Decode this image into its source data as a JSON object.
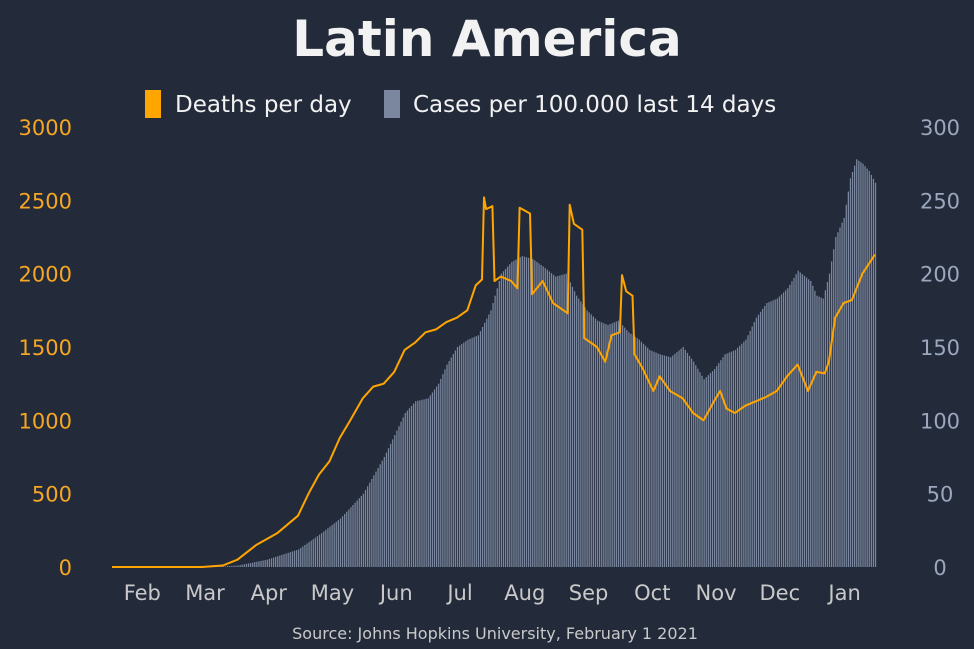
{
  "chart_data": {
    "type": "line+bar",
    "title": "Latin America",
    "source": "Source: Johns Hopkins University, February 1 2021",
    "legend": [
      {
        "label": "Deaths per day",
        "color": "#ffa500"
      },
      {
        "label": "Cases per 100.000 last 14 days",
        "color": "#7a879e"
      }
    ],
    "x_ticks": [
      "Feb",
      "Mar",
      "Apr",
      "May",
      "Jun",
      "Jul",
      "Aug",
      "Sep",
      "Oct",
      "Nov",
      "Dec",
      "Jan"
    ],
    "y_left": {
      "min": 0,
      "max": 3000,
      "ticks": [
        "0",
        "500",
        "1000",
        "1500",
        "2000",
        "2500",
        "3000"
      ]
    },
    "y_right": {
      "min": 0,
      "max": 300,
      "ticks": [
        "0",
        "50",
        "100",
        "150",
        "200",
        "250",
        "300"
      ]
    },
    "series": [
      {
        "name": "Deaths per day",
        "kind": "line",
        "axis": "left",
        "color": "#ffa500",
        "points": [
          [
            "2020-02-01",
            0
          ],
          [
            "2020-03-15",
            0
          ],
          [
            "2020-03-25",
            10
          ],
          [
            "2020-04-01",
            50
          ],
          [
            "2020-04-10",
            150
          ],
          [
            "2020-04-20",
            230
          ],
          [
            "2020-04-30",
            350
          ],
          [
            "2020-05-05",
            500
          ],
          [
            "2020-05-10",
            630
          ],
          [
            "2020-05-15",
            720
          ],
          [
            "2020-05-20",
            880
          ],
          [
            "2020-05-25",
            1000
          ],
          [
            "2020-05-31",
            1150
          ],
          [
            "2020-06-05",
            1230
          ],
          [
            "2020-06-10",
            1250
          ],
          [
            "2020-06-15",
            1330
          ],
          [
            "2020-06-20",
            1480
          ],
          [
            "2020-06-25",
            1530
          ],
          [
            "2020-06-30",
            1600
          ],
          [
            "2020-07-05",
            1620
          ],
          [
            "2020-07-10",
            1670
          ],
          [
            "2020-07-15",
            1700
          ],
          [
            "2020-07-20",
            1750
          ],
          [
            "2020-07-24",
            1920
          ],
          [
            "2020-07-27",
            1960
          ],
          [
            "2020-07-28",
            2520
          ],
          [
            "2020-07-29",
            2440
          ],
          [
            "2020-08-01",
            2460
          ],
          [
            "2020-08-02",
            1950
          ],
          [
            "2020-08-05",
            1980
          ],
          [
            "2020-08-10",
            1950
          ],
          [
            "2020-08-13",
            1900
          ],
          [
            "2020-08-14",
            2450
          ],
          [
            "2020-08-19",
            2410
          ],
          [
            "2020-08-20",
            1860
          ],
          [
            "2020-08-25",
            1950
          ],
          [
            "2020-08-30",
            1800
          ],
          [
            "2020-09-04",
            1750
          ],
          [
            "2020-09-06",
            1730
          ],
          [
            "2020-09-07",
            2470
          ],
          [
            "2020-09-09",
            2340
          ],
          [
            "2020-09-13",
            2300
          ],
          [
            "2020-09-14",
            1560
          ],
          [
            "2020-09-20",
            1500
          ],
          [
            "2020-09-24",
            1400
          ],
          [
            "2020-09-27",
            1580
          ],
          [
            "2020-10-01",
            1600
          ],
          [
            "2020-10-02",
            1990
          ],
          [
            "2020-10-04",
            1880
          ],
          [
            "2020-10-07",
            1850
          ],
          [
            "2020-10-08",
            1450
          ],
          [
            "2020-10-12",
            1350
          ],
          [
            "2020-10-17",
            1200
          ],
          [
            "2020-10-20",
            1300
          ],
          [
            "2020-10-25",
            1200
          ],
          [
            "2020-10-31",
            1150
          ],
          [
            "2020-11-05",
            1050
          ],
          [
            "2020-11-10",
            1000
          ],
          [
            "2020-11-15",
            1130
          ],
          [
            "2020-11-18",
            1200
          ],
          [
            "2020-11-21",
            1080
          ],
          [
            "2020-11-25",
            1050
          ],
          [
            "2020-11-30",
            1100
          ],
          [
            "2020-12-05",
            1130
          ],
          [
            "2020-12-10",
            1160
          ],
          [
            "2020-12-15",
            1200
          ],
          [
            "2020-12-20",
            1300
          ],
          [
            "2020-12-25",
            1380
          ],
          [
            "2020-12-30",
            1200
          ],
          [
            "2021-01-03",
            1330
          ],
          [
            "2021-01-07",
            1320
          ],
          [
            "2021-01-09",
            1400
          ],
          [
            "2021-01-12",
            1700
          ],
          [
            "2021-01-16",
            1800
          ],
          [
            "2021-01-20",
            1820
          ],
          [
            "2021-01-25",
            2000
          ],
          [
            "2021-01-31",
            2130
          ]
        ]
      },
      {
        "name": "Cases per 100.000 last 14 days",
        "kind": "bar",
        "axis": "right",
        "color": "#7a879e",
        "points": [
          [
            "2020-02-01",
            0
          ],
          [
            "2020-03-20",
            0
          ],
          [
            "2020-04-01",
            1
          ],
          [
            "2020-04-15",
            5
          ],
          [
            "2020-04-30",
            12
          ],
          [
            "2020-05-10",
            22
          ],
          [
            "2020-05-20",
            33
          ],
          [
            "2020-05-31",
            50
          ],
          [
            "2020-06-10",
            75
          ],
          [
            "2020-06-15",
            90
          ],
          [
            "2020-06-20",
            105
          ],
          [
            "2020-06-25",
            113
          ],
          [
            "2020-07-01",
            115
          ],
          [
            "2020-07-06",
            125
          ],
          [
            "2020-07-10",
            138
          ],
          [
            "2020-07-15",
            150
          ],
          [
            "2020-07-20",
            155
          ],
          [
            "2020-07-25",
            158
          ],
          [
            "2020-07-31",
            175
          ],
          [
            "2020-08-05",
            200
          ],
          [
            "2020-08-10",
            208
          ],
          [
            "2020-08-15",
            212
          ],
          [
            "2020-08-20",
            210
          ],
          [
            "2020-08-25",
            205
          ],
          [
            "2020-08-31",
            198
          ],
          [
            "2020-09-05",
            200
          ],
          [
            "2020-09-10",
            185
          ],
          [
            "2020-09-15",
            175
          ],
          [
            "2020-09-20",
            168
          ],
          [
            "2020-09-25",
            165
          ],
          [
            "2020-09-30",
            168
          ],
          [
            "2020-10-05",
            160
          ],
          [
            "2020-10-10",
            155
          ],
          [
            "2020-10-15",
            148
          ],
          [
            "2020-10-20",
            145
          ],
          [
            "2020-10-25",
            143
          ],
          [
            "2020-10-31",
            150
          ],
          [
            "2020-11-05",
            140
          ],
          [
            "2020-11-10",
            128
          ],
          [
            "2020-11-15",
            135
          ],
          [
            "2020-11-20",
            145
          ],
          [
            "2020-11-25",
            148
          ],
          [
            "2020-11-30",
            155
          ],
          [
            "2020-12-05",
            170
          ],
          [
            "2020-12-10",
            180
          ],
          [
            "2020-12-15",
            183
          ],
          [
            "2020-12-20",
            190
          ],
          [
            "2020-12-25",
            202
          ],
          [
            "2020-12-31",
            195
          ],
          [
            "2021-01-03",
            185
          ],
          [
            "2021-01-06",
            183
          ],
          [
            "2021-01-09",
            200
          ],
          [
            "2021-01-12",
            225
          ],
          [
            "2021-01-16",
            238
          ],
          [
            "2021-01-19",
            265
          ],
          [
            "2021-01-22",
            278
          ],
          [
            "2021-01-25",
            275
          ],
          [
            "2021-01-28",
            270
          ],
          [
            "2021-01-31",
            262
          ]
        ]
      }
    ]
  }
}
